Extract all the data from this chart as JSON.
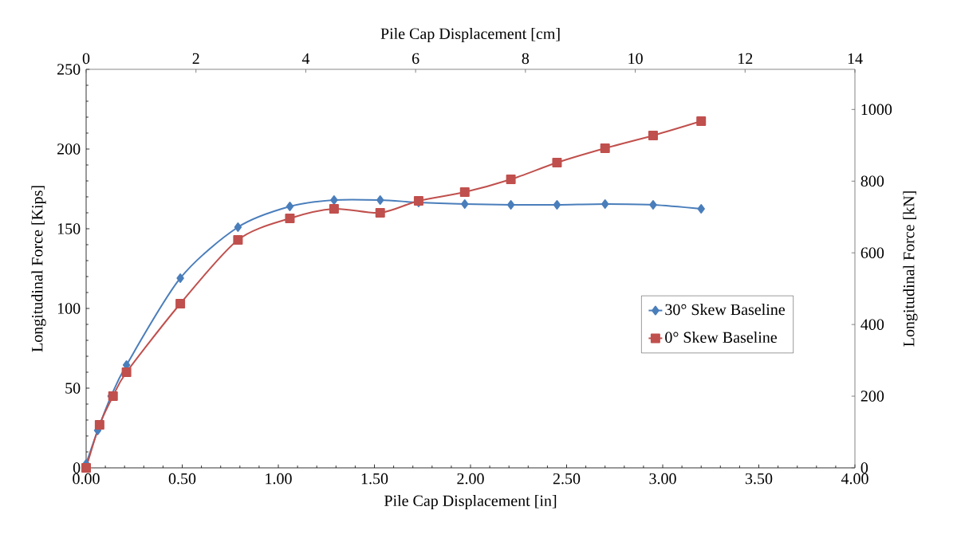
{
  "chart_data": {
    "type": "line",
    "xlabel": "Pile Cap Displacement [in]",
    "ylabel": "Longitudinal Force [Kips]",
    "x2label": "Pile Cap Displacement [cm]",
    "y2label": "Longitudinal Force [kN]",
    "xlim": [
      0,
      4
    ],
    "xticks": [
      {
        "value": 0,
        "label": "0.00"
      },
      {
        "value": 0.5,
        "label": "0.50"
      },
      {
        "value": 1,
        "label": "1.00"
      },
      {
        "value": 1.5,
        "label": "1.50"
      },
      {
        "value": 2,
        "label": "2.00"
      },
      {
        "value": 2.5,
        "label": "2.50"
      },
      {
        "value": 3,
        "label": "3.00"
      },
      {
        "value": 3.5,
        "label": "3.50"
      },
      {
        "value": 4,
        "label": "4.00"
      }
    ],
    "ylim": [
      0,
      250
    ],
    "yticks": [
      0,
      50,
      100,
      150,
      200,
      250
    ],
    "x2lim": [
      0,
      14
    ],
    "x2ticks": [
      0,
      2,
      4,
      6,
      8,
      10,
      12,
      14
    ],
    "y2lim": [
      0,
      1112
    ],
    "y2ticks": [
      0,
      200,
      400,
      600,
      800,
      1000
    ],
    "grid": false,
    "legend": "right",
    "series": [
      {
        "name": "30° Skew Baseline",
        "color": "#4a7ebb",
        "marker": "diamond",
        "x": [
          0,
          0.06,
          0.13,
          0.21,
          0.49,
          0.79,
          1.06,
          1.29,
          1.53,
          1.73,
          1.97,
          2.21,
          2.45,
          2.7,
          2.95,
          3.2
        ],
        "values": [
          2.5,
          23.5,
          45,
          64.5,
          119,
          151,
          164,
          168,
          168,
          166.5,
          165.5,
          165,
          165,
          165.5,
          165,
          162.5
        ]
      },
      {
        "name": "0° Skew Baseline",
        "color": "#c0504d",
        "marker": "square",
        "x": [
          0,
          0.07,
          0.14,
          0.21,
          0.49,
          0.79,
          1.06,
          1.29,
          1.53,
          1.73,
          1.97,
          2.21,
          2.45,
          2.7,
          2.95,
          3.2
        ],
        "values": [
          0,
          27,
          45,
          60,
          103,
          143,
          156.5,
          162.5,
          160,
          167.5,
          173,
          181,
          191.5,
          200.5,
          208.5,
          217.5
        ]
      }
    ]
  }
}
